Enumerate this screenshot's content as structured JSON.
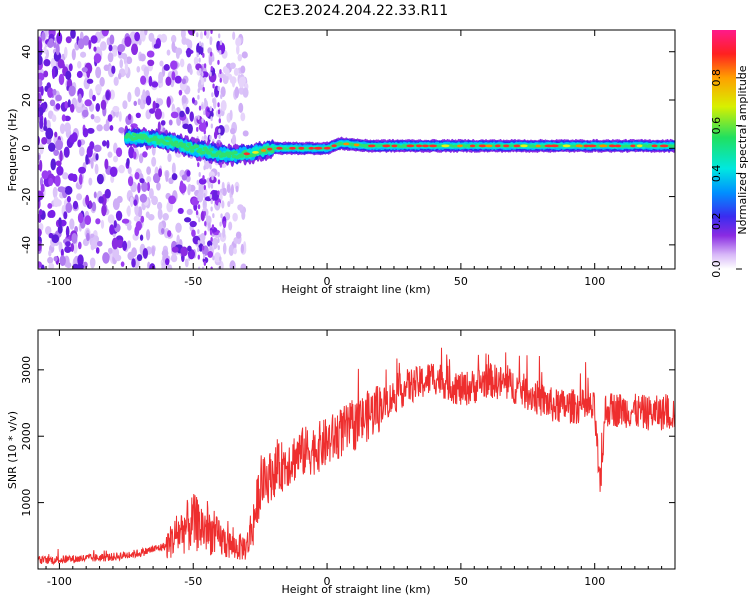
{
  "title": "C2E3.2024.204.22.33.R11",
  "colors": {
    "snr_line": "#ee2e2e",
    "background": "#ffffff",
    "axis": "#000000"
  },
  "chart_data": [
    {
      "type": "heatmap",
      "xlabel": "Height of straight line (km)",
      "ylabel": "Frequency (Hz)",
      "xlim": [
        -108,
        130
      ],
      "ylim": [
        -50,
        49
      ],
      "x_ticks": [
        -100,
        -50,
        0,
        50,
        100
      ],
      "y_ticks": [
        -40,
        -20,
        0,
        20,
        40
      ],
      "colorbar": {
        "label": "Normalized spectral amplitude",
        "range": [
          0,
          1
        ],
        "ticks": [
          "0.0",
          "0.2",
          "0.4",
          "0.6",
          "0.8"
        ],
        "colormap": "white-purple-blue-cyan-green-yellow-orange-red-magenta"
      },
      "ridge": {
        "description_points_km_hz": [
          [
            -75,
            5
          ],
          [
            -60,
            3
          ],
          [
            -50,
            0
          ],
          [
            -42,
            -2
          ],
          [
            -35,
            -3
          ],
          [
            -28,
            -2
          ],
          [
            -20,
            0
          ],
          [
            0,
            0
          ],
          [
            5,
            2
          ],
          [
            15,
            1
          ],
          [
            130,
            1
          ]
        ],
        "noise_region_km": [
          -108,
          -30
        ]
      }
    },
    {
      "type": "line",
      "xlabel": "Height of straight line (km)",
      "ylabel": "SNR (10 * v/v)",
      "xlim": [
        -108,
        130
      ],
      "ylim": [
        0,
        3600
      ],
      "x_ticks": [
        -100,
        -50,
        0,
        50,
        100
      ],
      "y_ticks": [
        1000,
        2000,
        3000
      ],
      "series": [
        {
          "points": [
            [
              -108,
              130
            ],
            [
              -100,
              140
            ],
            [
              -90,
              160
            ],
            [
              -80,
              180
            ],
            [
              -70,
              240
            ],
            [
              -60,
              350
            ],
            [
              -55,
              560
            ],
            [
              -50,
              700
            ],
            [
              -45,
              600
            ],
            [
              -40,
              450
            ],
            [
              -35,
              330
            ],
            [
              -30,
              330
            ],
            [
              -27,
              800
            ],
            [
              -25,
              1250
            ],
            [
              -20,
              1450
            ],
            [
              -15,
              1600
            ],
            [
              -10,
              1750
            ],
            [
              -5,
              1800
            ],
            [
              0,
              1900
            ],
            [
              5,
              2050
            ],
            [
              10,
              2150
            ],
            [
              15,
              2300
            ],
            [
              20,
              2450
            ],
            [
              25,
              2600
            ],
            [
              30,
              2750
            ],
            [
              35,
              2800
            ],
            [
              40,
              2900
            ],
            [
              45,
              2800
            ],
            [
              50,
              2700
            ],
            [
              55,
              2750
            ],
            [
              60,
              2850
            ],
            [
              65,
              2800
            ],
            [
              70,
              2750
            ],
            [
              75,
              2650
            ],
            [
              80,
              2550
            ],
            [
              85,
              2450
            ],
            [
              90,
              2450
            ],
            [
              95,
              2450
            ],
            [
              100,
              2400
            ],
            [
              102,
              1150
            ],
            [
              104,
              2400
            ],
            [
              110,
              2400
            ],
            [
              120,
              2350
            ],
            [
              130,
              2350
            ]
          ]
        }
      ]
    }
  ]
}
